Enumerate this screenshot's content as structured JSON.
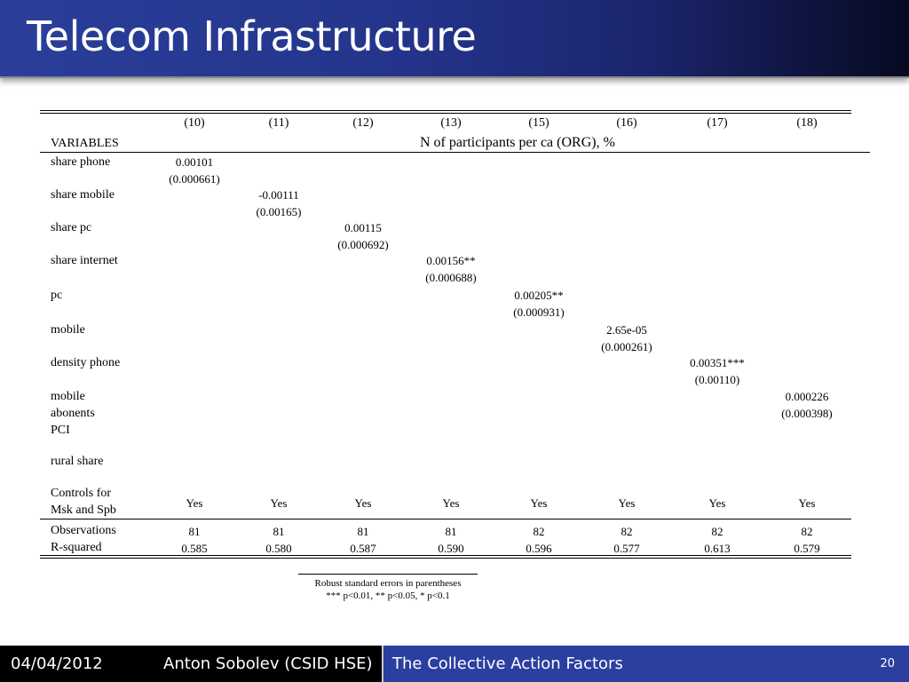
{
  "slide": {
    "title": "Telecom Infrastructure"
  },
  "table": {
    "columns": [
      "(10)",
      "(11)",
      "(12)",
      "(13)",
      "(15)",
      "(16)",
      "(17)",
      "(18)"
    ],
    "variables_label": "VARIABLES",
    "dependent_variable": "N of participants per ca (ORG), %",
    "rows": [
      {
        "label": [
          "share phone"
        ],
        "col": 0,
        "coef": "0.00101",
        "se": "(0.000661)"
      },
      {
        "label": [
          "share mobile"
        ],
        "col": 1,
        "coef": "-0.00111",
        "se": "(0.00165)"
      },
      {
        "label": [
          "share pc"
        ],
        "col": 2,
        "coef": "0.00115",
        "se": "(0.000692)"
      },
      {
        "label": [
          "share internet"
        ],
        "col": 3,
        "coef": "0.00156**",
        "se": "(0.000688)"
      },
      {
        "label": [
          "pc"
        ],
        "col": 4,
        "coef": "0.00205**",
        "se": "(0.000931)"
      },
      {
        "label": [
          "mobile"
        ],
        "col": 5,
        "coef": "2.65e-05",
        "se": "(0.000261)"
      },
      {
        "label": [
          "density phone"
        ],
        "col": 6,
        "coef": "0.00351***",
        "se": "(0.00110)"
      },
      {
        "label": [
          "mobile",
          "abonents"
        ],
        "col": 7,
        "coef": "0.000226",
        "se": "(0.000398)"
      },
      {
        "label": [
          "PCI"
        ],
        "col": null,
        "coef": "",
        "se": ""
      },
      {
        "label": [
          "rural share"
        ],
        "col": null,
        "coef": "",
        "se": ""
      }
    ],
    "controls": {
      "label": [
        "Controls for",
        "Msk and Spb"
      ],
      "values": [
        "Yes",
        "Yes",
        "Yes",
        "Yes",
        "Yes",
        "Yes",
        "Yes",
        "Yes"
      ]
    },
    "observations": {
      "label": "Observations",
      "values": [
        "81",
        "81",
        "81",
        "81",
        "82",
        "82",
        "82",
        "82"
      ]
    },
    "r_squared": {
      "label": "R-squared",
      "values": [
        "0.585",
        "0.580",
        "0.587",
        "0.590",
        "0.596",
        "0.577",
        "0.613",
        "0.579"
      ]
    }
  },
  "notes": [
    "Robust standard errors in parentheses",
    "*** p<0.01, ** p<0.05, * p<0.1"
  ],
  "footer": {
    "date": "04/04/2012",
    "author": "Anton Sobolev (CSID HSE)",
    "talk_title": "The Collective Action Factors",
    "slide_number": "20"
  },
  "colors": {
    "title_bar": "#24348a",
    "footer_dark": "#000000",
    "footer_blue": "#2b3fa0"
  }
}
